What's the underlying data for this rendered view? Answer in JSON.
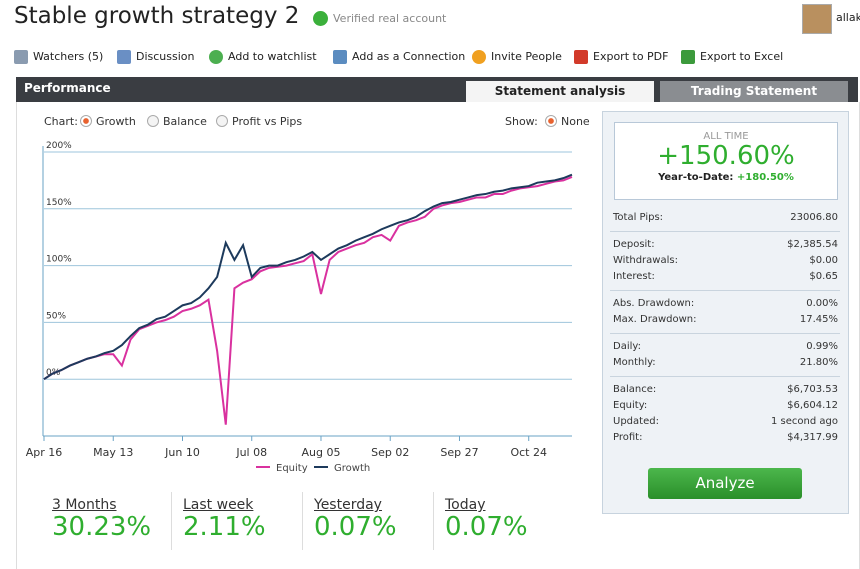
{
  "header": {
    "title": "Stable growth strategy 2",
    "verified": "Verified real account",
    "user": "allak"
  },
  "toolbar": [
    "Watchers (5)",
    "Discussion",
    "Add to watchlist",
    "Add as a Connection",
    "Invite People",
    "Export to PDF",
    "Export to Excel"
  ],
  "panel": {
    "title": "Performance",
    "tabs": [
      "Statement analysis",
      "Trading Statement"
    ]
  },
  "controls": {
    "chart_label": "Chart:",
    "chart_options": [
      "Growth",
      "Balance",
      "Profit vs Pips"
    ],
    "show_label": "Show:",
    "show_options": [
      "None"
    ]
  },
  "chart_data": {
    "type": "line",
    "categories": [
      "Apr 16",
      null,
      null,
      null,
      null,
      null,
      null,
      null,
      "May 13",
      null,
      null,
      null,
      null,
      null,
      null,
      null,
      "Jun 10",
      null,
      null,
      null,
      null,
      null,
      null,
      null,
      "Jul 08",
      null,
      null,
      null,
      null,
      null,
      null,
      null,
      "Aug 05",
      null,
      null,
      null,
      null,
      null,
      null,
      null,
      "Sep 02",
      null,
      null,
      null,
      null,
      null,
      null,
      null,
      "Sep 27",
      null,
      null,
      null,
      null,
      null,
      null,
      null,
      "Oct 24",
      null,
      null,
      null,
      null,
      null
    ],
    "series": [
      {
        "name": "Equity",
        "color": "#d9319f",
        "values": [
          0,
          5,
          8,
          12,
          15,
          18,
          20,
          22,
          22,
          12,
          35,
          44,
          47,
          50,
          52,
          55,
          60,
          62,
          65,
          70,
          25,
          -40,
          80,
          85,
          88,
          95,
          98,
          99,
          100,
          102,
          104,
          110,
          75,
          105,
          112,
          115,
          118,
          120,
          125,
          127,
          122,
          135,
          138,
          140,
          143,
          150,
          153,
          155,
          156,
          158,
          160,
          160,
          163,
          163,
          166,
          168,
          169,
          170,
          172,
          174,
          175,
          178
        ]
      },
      {
        "name": "Growth",
        "color": "#1d3a5c",
        "values": [
          0,
          5,
          8,
          12,
          15,
          18,
          20,
          23,
          25,
          30,
          38,
          45,
          48,
          53,
          55,
          60,
          65,
          67,
          72,
          80,
          90,
          120,
          105,
          118,
          90,
          98,
          100,
          100,
          103,
          105,
          108,
          112,
          105,
          110,
          115,
          118,
          122,
          125,
          128,
          132,
          135,
          138,
          140,
          143,
          148,
          152,
          155,
          156,
          158,
          160,
          162,
          163,
          165,
          166,
          168,
          169,
          170,
          173,
          174,
          175,
          177,
          180
        ]
      }
    ],
    "ylim": [
      -50,
      200
    ],
    "yticks": [
      {
        "value": 0,
        "label": "0%"
      },
      {
        "value": 50,
        "label": "50%"
      },
      {
        "value": 100,
        "label": "100%"
      },
      {
        "value": 150,
        "label": "150%"
      },
      {
        "value": 200,
        "label": "200%"
      }
    ],
    "grid": true
  },
  "summary": {
    "period": "ALL TIME",
    "value": "+150.60%",
    "ytd_label": "Year-to-Date:",
    "ytd_value": "+180.50%"
  },
  "stats": [
    [
      [
        "Total Pips:",
        "23006.80"
      ]
    ],
    [
      [
        "Deposit:",
        "$2,385.54"
      ],
      [
        "Withdrawals:",
        "$0.00"
      ],
      [
        "Interest:",
        "$0.65"
      ]
    ],
    [
      [
        "Abs. Drawdown:",
        "0.00%"
      ],
      [
        "Max. Drawdown:",
        "17.45%"
      ]
    ],
    [
      [
        "Daily:",
        "0.99%"
      ],
      [
        "Monthly:",
        "21.80%"
      ]
    ],
    [
      [
        "Balance:",
        "$6,703.53"
      ],
      [
        "Equity:",
        "$6,604.12"
      ],
      [
        "Updated:",
        "1 second ago"
      ],
      [
        "Profit:",
        "$4,317.99"
      ]
    ]
  ],
  "button": "Analyze",
  "periods": [
    [
      "3 Months",
      "30.23%"
    ],
    [
      "Last week",
      "2.11%"
    ],
    [
      "Yesterday",
      "0.07%"
    ],
    [
      "Today",
      "0.07%"
    ]
  ]
}
